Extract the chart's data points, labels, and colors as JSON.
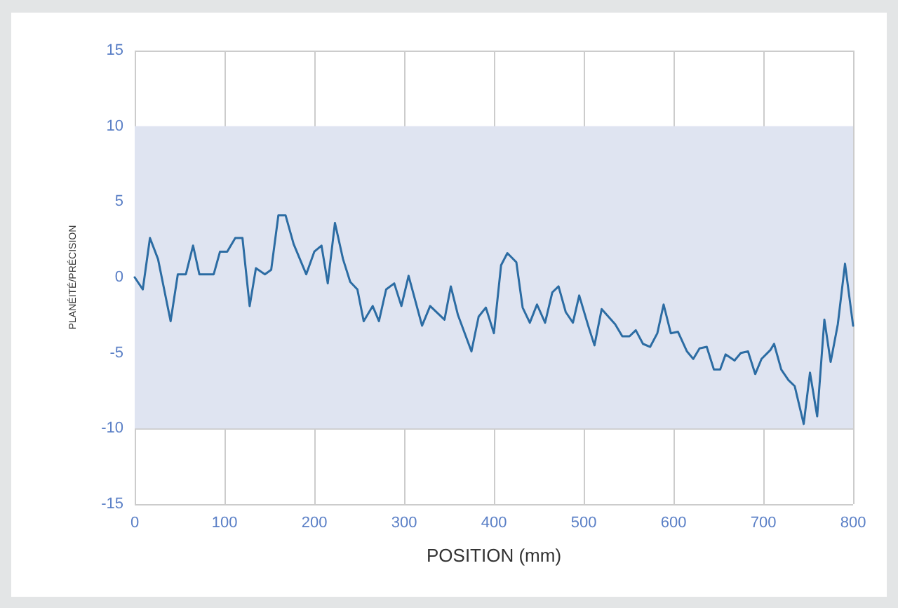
{
  "chart_data": {
    "type": "line",
    "xlabel": "POSITION (mm)",
    "ylabel": "PLANÉITÉ/PRÉCISION",
    "x": [
      0,
      9,
      17,
      26,
      40,
      48,
      57,
      65,
      72,
      88,
      95,
      103,
      112,
      120,
      128,
      135,
      145,
      152,
      160,
      168,
      177,
      191,
      200,
      208,
      215,
      223,
      232,
      240,
      248,
      255,
      265,
      272,
      280,
      289,
      297,
      305,
      320,
      329,
      345,
      352,
      360,
      375,
      383,
      391,
      400,
      408,
      415,
      425,
      432,
      440,
      448,
      457,
      465,
      472,
      480,
      488,
      495,
      505,
      512,
      520,
      535,
      543,
      551,
      558,
      566,
      574,
      582,
      589,
      597,
      605,
      615,
      622,
      629,
      637,
      645,
      652,
      658,
      668,
      675,
      683,
      691,
      698,
      708,
      712,
      720,
      728,
      735,
      745,
      752,
      760,
      768,
      775,
      783,
      791,
      800
    ],
    "series": [
      {
        "color": "#2c6ca3",
        "values": [
          0,
          -0.8,
          2.6,
          1.2,
          -2.9,
          0.2,
          0.2,
          2.1,
          0.2,
          0.2,
          1.7,
          1.7,
          2.6,
          2.6,
          -1.9,
          0.6,
          0.2,
          0.5,
          4.1,
          4.1,
          2.2,
          0.2,
          1.7,
          2.1,
          -0.4,
          3.6,
          1.2,
          -0.3,
          -0.8,
          -2.9,
          -1.9,
          -2.9,
          -0.8,
          -0.4,
          -1.9,
          0.1,
          -3.2,
          -1.9,
          -2.8,
          -0.6,
          -2.5,
          -4.9,
          -2.6,
          -2,
          -3.7,
          0.8,
          1.6,
          1,
          -2,
          -3,
          -1.8,
          -3,
          -1,
          -0.6,
          -2.3,
          -3,
          -1.2,
          -3.2,
          -4.5,
          -2.1,
          -3.1,
          -3.9,
          -3.9,
          -3.5,
          -4.4,
          -4.6,
          -3.7,
          -1.8,
          -3.7,
          -3.6,
          -4.9,
          -5.4,
          -4.7,
          -4.6,
          -6.1,
          -6.1,
          -5.1,
          -5.5,
          -5,
          -4.9,
          -6.4,
          -5.4,
          -4.8,
          -4.4,
          -6.1,
          -6.8,
          -7.2,
          -9.7,
          -6.3,
          -9.2,
          -2.8,
          -5.6,
          -3.1,
          0.9,
          -3.2
        ]
      }
    ],
    "xlim": [
      0,
      800
    ],
    "xticks": [
      0,
      100,
      200,
      300,
      400,
      500,
      600,
      700,
      800
    ],
    "ylim": [
      -15,
      15
    ],
    "yticks": [
      -15,
      -10,
      -5,
      0,
      5,
      10,
      15
    ],
    "bands": [
      {
        "axis": "y",
        "from": -10,
        "to": 10,
        "color": "#dfe4f1"
      }
    ],
    "grid": true,
    "marker": "none",
    "line_style": "solid"
  }
}
